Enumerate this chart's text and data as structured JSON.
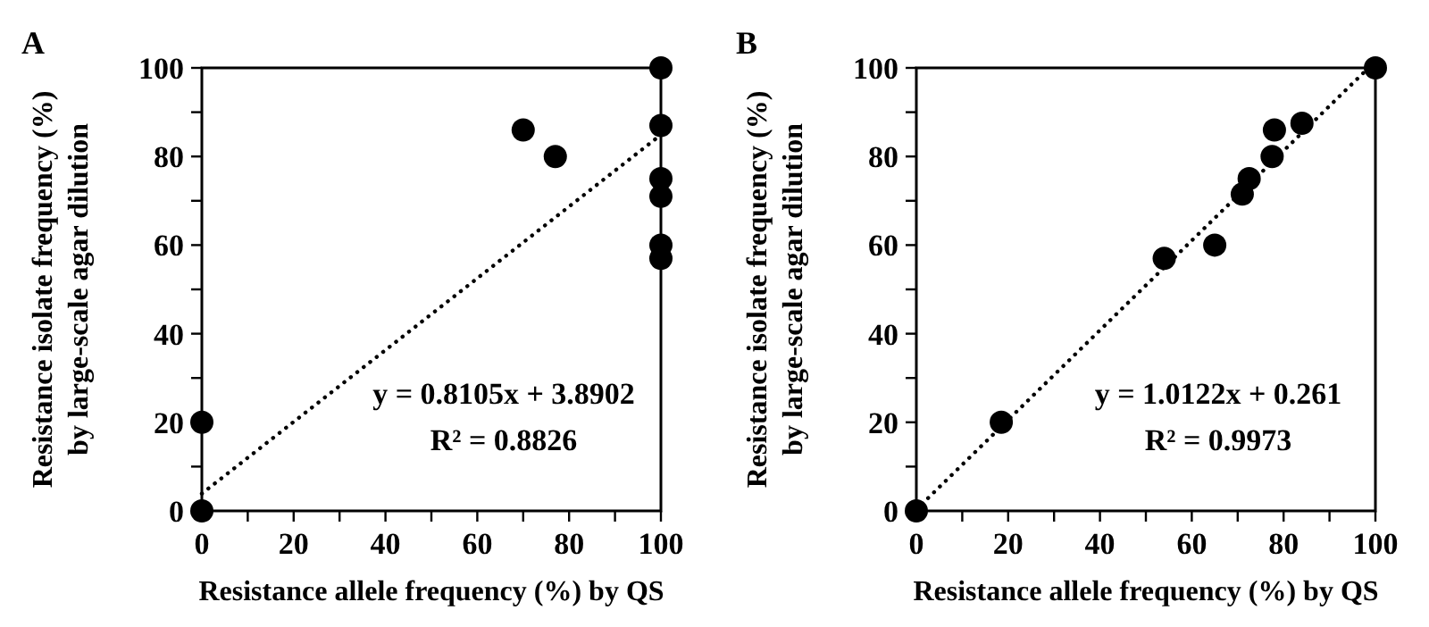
{
  "chart_data": [
    {
      "type": "scatter",
      "title": "A",
      "xlabel": "Resistance allele frequency (%) by QS",
      "ylabel": "Resistance isolate frequency (%)\nby large-scale agar dilution",
      "xlim": [
        0,
        100
      ],
      "ylim": [
        0,
        100
      ],
      "xticks": [
        0,
        {
          "value": 10,
          "label": null
        },
        20,
        {
          "value": 30,
          "label": null
        },
        40,
        {
          "value": 50,
          "label": null
        },
        60,
        {
          "value": 70,
          "label": null
        },
        80,
        {
          "value": 90,
          "label": null
        },
        100
      ],
      "yticks": [
        0,
        {
          "value": 10,
          "label": null
        },
        20,
        {
          "value": 30,
          "label": null
        },
        40,
        {
          "value": 50,
          "label": null
        },
        60,
        {
          "value": 70,
          "label": null
        },
        80,
        {
          "value": 90,
          "label": null
        },
        100
      ],
      "grid": false,
      "marker": "circle",
      "annotations": [
        "y = 0.8105x + 3.8902",
        "R² = 0.8826"
      ],
      "series": [
        {
          "color": "#000000",
          "x": [
            0,
            0,
            70,
            77,
            100,
            100,
            100,
            100,
            100,
            100
          ],
          "values": [
            0,
            20,
            86,
            80,
            100,
            87,
            75,
            71,
            60,
            57
          ]
        },
        {
          "type": "line",
          "color": "#000000",
          "line_style": "dotted",
          "marker": "none",
          "x": [
            0,
            100
          ],
          "values": [
            3.9,
            84.9
          ]
        }
      ]
    },
    {
      "type": "scatter",
      "title": "B",
      "xlabel": "Resistance allele frequency (%) by QS",
      "ylabel": "Resistance isolate frequency (%)\nby large-scale agar dilution",
      "xlim": [
        0,
        100
      ],
      "ylim": [
        0,
        100
      ],
      "xticks": [
        0,
        {
          "value": 10,
          "label": null
        },
        20,
        {
          "value": 30,
          "label": null
        },
        40,
        {
          "value": 50,
          "label": null
        },
        60,
        {
          "value": 70,
          "label": null
        },
        80,
        {
          "value": 90,
          "label": null
        },
        100
      ],
      "yticks": [
        0,
        {
          "value": 10,
          "label": null
        },
        20,
        {
          "value": 30,
          "label": null
        },
        40,
        {
          "value": 50,
          "label": null
        },
        60,
        {
          "value": 70,
          "label": null
        },
        80,
        {
          "value": 90,
          "label": null
        },
        100
      ],
      "grid": false,
      "marker": "circle",
      "annotations": [
        "y = 1.0122x + 0.261",
        "R² = 0.9973"
      ],
      "series": [
        {
          "color": "#000000",
          "x": [
            0,
            18.5,
            54,
            65,
            71,
            72.5,
            77.5,
            78,
            84,
            100
          ],
          "values": [
            0,
            20,
            57,
            60,
            71.5,
            75,
            80,
            86,
            87.5,
            100
          ]
        },
        {
          "type": "line",
          "color": "#000000",
          "line_style": "dotted",
          "marker": "none",
          "x": [
            0,
            98.5
          ],
          "values": [
            0.3,
            100
          ]
        }
      ]
    }
  ]
}
